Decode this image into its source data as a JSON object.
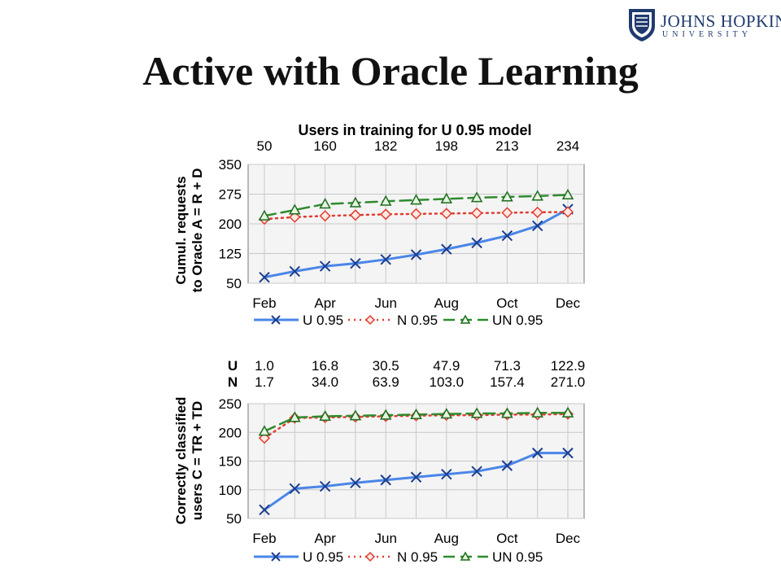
{
  "slide": {
    "title": "Active with Oracle Learning"
  },
  "logo": {
    "name": "JOHNS HOPKINS",
    "subtitle": "UNIVERSITY"
  },
  "colors": {
    "U": "#4a86e8",
    "N": "#e03c31",
    "UN": "#2e8b2e"
  },
  "chart_data": [
    {
      "type": "line",
      "title": "Users in training for U 0.95 model",
      "top_labels": [
        "50",
        "160",
        "182",
        "198",
        "213",
        "234"
      ],
      "ylabel_lines": [
        "Cumul. requests",
        "to Oracle A = R + D"
      ],
      "ylim": [
        50,
        350
      ],
      "yticks": [
        350,
        275,
        200,
        125,
        50
      ],
      "x_tick_labels": [
        "Feb",
        "Apr",
        "Jun",
        "Aug",
        "Oct",
        "Dec"
      ],
      "x": [
        "Feb",
        "Mar",
        "Apr",
        "May",
        "Jun",
        "Jul",
        "Aug",
        "Sep",
        "Oct",
        "Nov",
        "Dec"
      ],
      "grid": true,
      "legend_position": "bottom",
      "series": [
        {
          "name": "U 0.95",
          "marker": "x",
          "style": "solid",
          "values": [
            65,
            80,
            93,
            100,
            110,
            122,
            136,
            152,
            170,
            195,
            237
          ]
        },
        {
          "name": "N 0.95",
          "marker": "diamond",
          "style": "dotted",
          "values": [
            212,
            217,
            220,
            222,
            224,
            225,
            226,
            227,
            228,
            229,
            230
          ]
        },
        {
          "name": "UN 0.95",
          "marker": "triangle",
          "style": "dashed",
          "values": [
            220,
            235,
            250,
            253,
            257,
            260,
            263,
            266,
            268,
            270,
            273
          ]
        }
      ]
    },
    {
      "type": "line",
      "title": "",
      "row_labels": [
        "U",
        "N"
      ],
      "top_rows": [
        [
          "1.0",
          "16.8",
          "30.5",
          "47.9",
          "71.3",
          "122.9"
        ],
        [
          "1.7",
          "34.0",
          "63.9",
          "103.0",
          "157.4",
          "271.0"
        ]
      ],
      "ylabel_lines": [
        "Correctly classified",
        "users C = TR + TD"
      ],
      "ylim": [
        50,
        250
      ],
      "yticks": [
        250,
        200,
        150,
        100,
        50
      ],
      "x_tick_labels": [
        "Feb",
        "Apr",
        "Jun",
        "Aug",
        "Oct",
        "Dec"
      ],
      "x": [
        "Feb",
        "Mar",
        "Apr",
        "May",
        "Jun",
        "Jul",
        "Aug",
        "Sep",
        "Oct",
        "Nov",
        "Dec"
      ],
      "grid": true,
      "legend_position": "bottom",
      "series": [
        {
          "name": "U 0.95",
          "marker": "x",
          "style": "solid",
          "values": [
            65,
            102,
            106,
            112,
            117,
            122,
            127,
            132,
            142,
            164,
            164
          ]
        },
        {
          "name": "N 0.95",
          "marker": "diamond",
          "style": "dotted",
          "values": [
            190,
            225,
            226,
            227,
            228,
            229,
            230,
            230,
            231,
            231,
            232
          ]
        },
        {
          "name": "UN 0.95",
          "marker": "triangle",
          "style": "dashed",
          "values": [
            202,
            226,
            228,
            229,
            230,
            231,
            232,
            233,
            233,
            234,
            234
          ]
        }
      ]
    }
  ]
}
